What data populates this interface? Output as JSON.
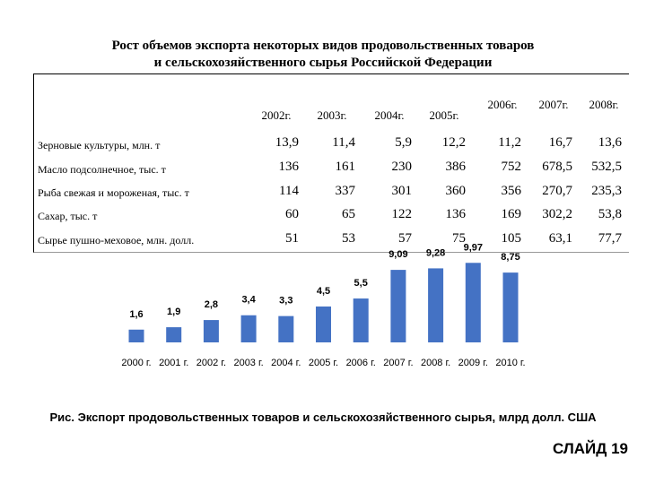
{
  "title_line1": "Рост объемов экспорта некоторых видов продовольственных товаров",
  "title_line2": "и сельскохозяйственного сырья Российской Федерации",
  "table": {
    "years": [
      "2002г.",
      "2003г.",
      "2004г.",
      "2005г.",
      "2006г.",
      "2007г.",
      "2008г."
    ],
    "rows": [
      {
        "label": "Зерновые культуры, млн. т",
        "values": [
          "13,9",
          "11,4",
          "5,9",
          "12,2",
          "11,2",
          "16,7",
          "13,6"
        ]
      },
      {
        "label": "Масло подсолнечное, тыс. т",
        "values": [
          "136",
          "161",
          "230",
          "386",
          "752",
          "678,5",
          "532,5"
        ]
      },
      {
        "label": "Рыба свежая и мороженая, тыс. т",
        "values": [
          "114",
          "337",
          "301",
          "360",
          "356",
          "270,7",
          "235,3"
        ]
      },
      {
        "label": "Сахар, тыс. т",
        "values": [
          "60",
          "65",
          "122",
          "136",
          "169",
          "302,2",
          "53,8"
        ]
      },
      {
        "label": "Сырье пушно-меховое, млн. долл.",
        "values": [
          "51",
          "53",
          "57",
          "75",
          "105",
          "63,1",
          "77,7"
        ]
      }
    ]
  },
  "chart_data": {
    "type": "bar",
    "categories": [
      "2000 г.",
      "2001 г.",
      "2002 г.",
      "2003 г.",
      "2004 г.",
      "2005 г.",
      "2006 г.",
      "2007 г.",
      "2008 г.",
      "2009 г.",
      "2010 г."
    ],
    "values": [
      1.6,
      1.9,
      2.8,
      3.4,
      3.3,
      4.5,
      5.5,
      9.09,
      9.28,
      9.97,
      8.75
    ],
    "value_labels": [
      "1,6",
      "1,9",
      "2,8",
      "3,4",
      "3,3",
      "4,5",
      "5,5",
      "9,09",
      "9,28",
      "9,97",
      "8,75"
    ],
    "ylabel": "",
    "xlabel": "",
    "bar_color": "#4472c4"
  },
  "caption": "Рис. Экспорт продовольственных товаров и сельскохозяйственного сырья, млрд долл. США",
  "slide_label": "СЛАЙД 19"
}
